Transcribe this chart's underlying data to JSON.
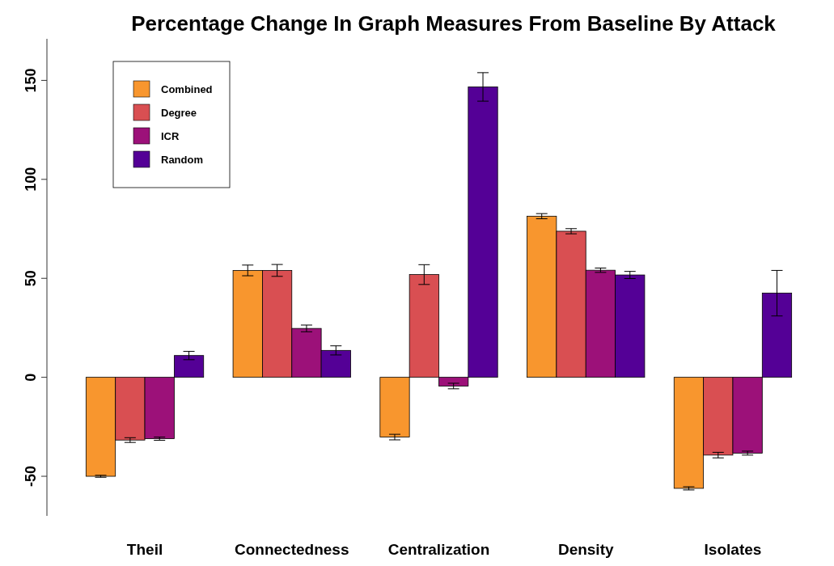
{
  "chart_data": {
    "type": "bar",
    "title": "Percentage Change In Graph Measures From Baseline By Attack",
    "categories": [
      "Theil",
      "Connectedness",
      "Centralization",
      "Density",
      "Isolates"
    ],
    "series": [
      {
        "name": "Combined",
        "color": "#f8962e",
        "values": [
          -50,
          54,
          -30.2,
          81.4,
          -56.1
        ],
        "errors": [
          0.5,
          2.7,
          1.4,
          1.3,
          0.8
        ]
      },
      {
        "name": "Degree",
        "color": "#d94f52",
        "values": [
          -31.7,
          54,
          51.9,
          73.8,
          -39.3
        ],
        "errors": [
          1.2,
          3,
          5,
          1.3,
          1.4
        ]
      },
      {
        "name": "ICR",
        "color": "#9c1179",
        "values": [
          -31,
          24.7,
          -4.4,
          54.1,
          -38.3
        ],
        "errors": [
          0.8,
          1.7,
          1.4,
          1.1,
          1
        ]
      },
      {
        "name": "Random",
        "color": "#540096",
        "values": [
          11,
          13.6,
          146.7,
          51.7,
          42.5
        ],
        "errors": [
          2.1,
          2.3,
          7.2,
          1.8,
          11.5
        ]
      }
    ],
    "ylim": [
      -70,
      171
    ],
    "yticks": [
      -50,
      0,
      50,
      100,
      150
    ],
    "grid": false,
    "legend": "top left"
  }
}
